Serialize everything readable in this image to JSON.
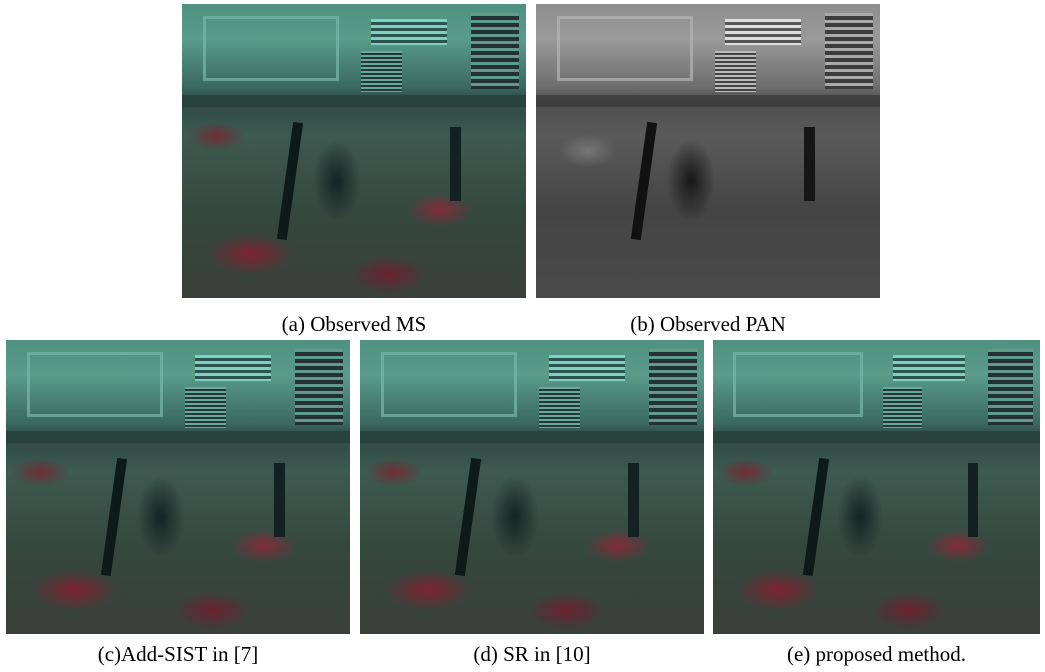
{
  "figure": {
    "panels": [
      {
        "caption": "(a) Observed MS"
      },
      {
        "caption": "(b) Observed PAN"
      },
      {
        "caption": "(c)Add-SIST in [7]"
      },
      {
        "caption": "(d) SR in [10]"
      },
      {
        "caption": "(e) proposed method."
      }
    ]
  }
}
